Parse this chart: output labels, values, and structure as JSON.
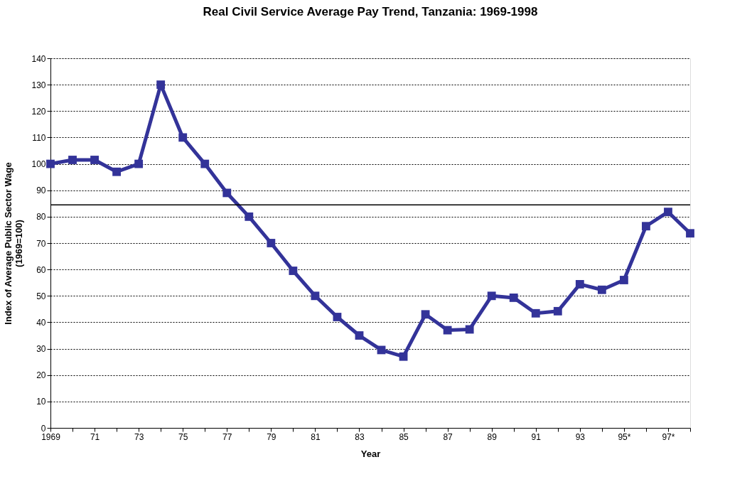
{
  "chart_data": {
    "type": "line",
    "title": "Real Civil Service Average Pay Trend, Tanzania:  1969-1998",
    "xlabel": "Year",
    "ylabel": "Index of Average Public  Sector Wage\n(1969=100)",
    "categories": [
      "1969",
      null,
      "71",
      null,
      "73",
      null,
      "75",
      null,
      "77",
      null,
      "79",
      null,
      "81",
      null,
      "83",
      null,
      "85",
      null,
      "87",
      null,
      "89",
      null,
      "91",
      null,
      "93",
      null,
      "95*",
      null,
      "97*",
      null
    ],
    "series": [
      {
        "color": "#333399",
        "values": [
          100,
          101.5,
          101.5,
          97,
          100,
          130,
          110,
          100,
          89,
          80,
          70,
          59.5,
          50,
          42,
          35,
          29.5,
          27,
          43,
          37,
          37.3,
          50,
          49.3,
          43.4,
          44.2,
          54.4,
          52.3,
          56,
          76.4,
          81.8,
          73.7
        ]
      }
    ],
    "ylim": [
      0,
      140
    ],
    "yticks": [
      0,
      10,
      20,
      30,
      40,
      50,
      60,
      70,
      80,
      90,
      100,
      110,
      120,
      130,
      140
    ],
    "ref_lines": [
      {
        "axis": "y",
        "value": 84.5,
        "color": "#000000",
        "line_style": "solid"
      }
    ],
    "grid": "y",
    "marker": "square",
    "line_style": "solid"
  }
}
